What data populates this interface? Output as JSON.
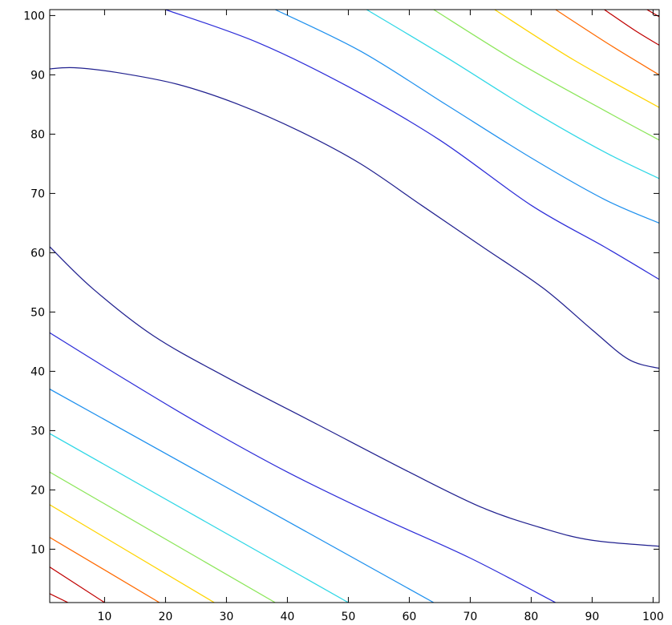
{
  "chart_data": {
    "type": "contour",
    "title": "",
    "xlabel": "",
    "ylabel": "",
    "xlim": [
      1,
      101
    ],
    "ylim": [
      1,
      101
    ],
    "xticks": [
      10,
      20,
      30,
      40,
      50,
      60,
      70,
      80,
      90,
      100
    ],
    "yticks": [
      10,
      20,
      30,
      40,
      50,
      60,
      70,
      80,
      90,
      100
    ],
    "grid": false,
    "legend": "none",
    "colormap": "jet",
    "contours": [
      {
        "color": "#c00000",
        "points": [
          [
            1,
            2.5
          ],
          [
            4,
            1
          ]
        ]
      },
      {
        "color": "#c00000",
        "points": [
          [
            1,
            7
          ],
          [
            10,
            1
          ]
        ]
      },
      {
        "color": "#ff6a00",
        "points": [
          [
            1,
            12
          ],
          [
            19,
            1
          ]
        ]
      },
      {
        "color": "#ffd400",
        "points": [
          [
            1,
            17.5
          ],
          [
            28,
            1
          ]
        ]
      },
      {
        "color": "#8ce65a",
        "points": [
          [
            1,
            23
          ],
          [
            38,
            1
          ]
        ]
      },
      {
        "color": "#2ed7e6",
        "points": [
          [
            1,
            29.5
          ],
          [
            50,
            1
          ]
        ]
      },
      {
        "color": "#1e90ee",
        "points": [
          [
            1,
            37
          ],
          [
            64,
            1
          ]
        ]
      },
      {
        "color": "#2c2cd8",
        "points": [
          [
            1,
            46.5
          ],
          [
            12,
            39.5
          ],
          [
            25,
            31.5
          ],
          [
            40,
            23
          ],
          [
            55,
            15.5
          ],
          [
            70,
            8.5
          ],
          [
            84,
            1
          ]
        ]
      },
      {
        "color": "#20208f",
        "points": [
          [
            1,
            61
          ],
          [
            8,
            54
          ],
          [
            18,
            46
          ],
          [
            30,
            39
          ],
          [
            45,
            31
          ],
          [
            60,
            23
          ],
          [
            72,
            17
          ],
          [
            82,
            13.5
          ],
          [
            90,
            11.5
          ],
          [
            101,
            10.5
          ]
        ]
      },
      {
        "color": "#20208f",
        "points": [
          [
            1,
            91
          ],
          [
            5,
            91.2
          ],
          [
            12,
            90.4
          ],
          [
            22,
            88.4
          ],
          [
            32,
            85
          ],
          [
            42,
            80.5
          ],
          [
            52,
            75
          ],
          [
            62,
            68
          ],
          [
            72,
            61
          ],
          [
            82,
            54
          ],
          [
            90,
            47
          ],
          [
            96,
            42
          ],
          [
            101,
            40.5
          ]
        ]
      },
      {
        "color": "#2c2cd8",
        "points": [
          [
            20,
            101
          ],
          [
            35,
            95.5
          ],
          [
            50,
            88
          ],
          [
            65,
            79
          ],
          [
            80,
            68
          ],
          [
            92,
            61
          ],
          [
            101,
            55.5
          ]
        ]
      },
      {
        "color": "#1e90ee",
        "points": [
          [
            38,
            101
          ],
          [
            52,
            94
          ],
          [
            66,
            85
          ],
          [
            80,
            76
          ],
          [
            92,
            69
          ],
          [
            101,
            65
          ]
        ]
      },
      {
        "color": "#2ed7e6",
        "points": [
          [
            53,
            101
          ],
          [
            66,
            93
          ],
          [
            80,
            84
          ],
          [
            92,
            77
          ],
          [
            101,
            72.5
          ]
        ]
      },
      {
        "color": "#8ce65a",
        "points": [
          [
            64,
            101
          ],
          [
            78,
            92
          ],
          [
            92,
            84
          ],
          [
            101,
            79
          ]
        ]
      },
      {
        "color": "#ffd400",
        "points": [
          [
            74,
            101
          ],
          [
            87,
            92.5
          ],
          [
            101,
            84.5
          ]
        ]
      },
      {
        "color": "#ff6a00",
        "points": [
          [
            84,
            101
          ],
          [
            93,
            95
          ],
          [
            101,
            90
          ]
        ]
      },
      {
        "color": "#c00000",
        "points": [
          [
            92,
            101
          ],
          [
            97,
            97.5
          ],
          [
            101,
            95
          ]
        ]
      },
      {
        "color": "#c00000",
        "points": [
          [
            99,
            101
          ],
          [
            101,
            99.8
          ]
        ]
      }
    ]
  }
}
